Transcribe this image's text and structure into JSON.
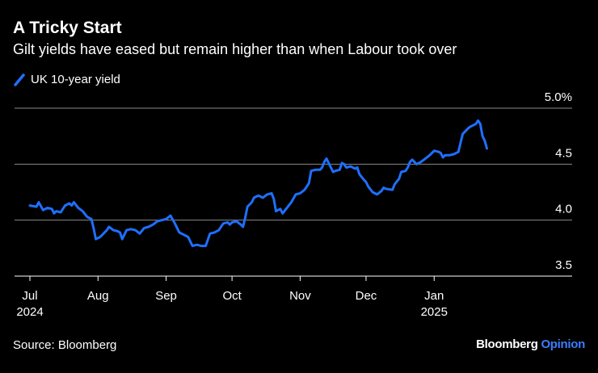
{
  "header": {
    "title": "A Tricky Start",
    "subtitle": "Gilt yields have eased but remain higher than when Labour took over"
  },
  "footer": {
    "source": "Source: Bloomberg",
    "brand": "Bloomberg",
    "brand_suffix": "Opinion"
  },
  "colors": {
    "line": "#1f6fff",
    "grid": "#8a8a8a",
    "background": "#000000",
    "text": "#ffffff"
  },
  "chart_data": {
    "type": "line",
    "title": "A Tricky Start",
    "subtitle": "Gilt yields have eased but remain higher than when Labour took over",
    "xlabel": "",
    "ylabel": "",
    "ylim": [
      3.5,
      5.0
    ],
    "xlim": [
      0,
      224
    ],
    "yticks": [
      {
        "value": 5.0,
        "label": "5.0%"
      },
      {
        "value": 4.5,
        "label": "4.5"
      },
      {
        "value": 4.0,
        "label": "4.0"
      },
      {
        "value": 3.5,
        "label": "3.5"
      }
    ],
    "xticks": [
      {
        "x": 0,
        "label": "Jul",
        "sublabel": "2024"
      },
      {
        "x": 31,
        "label": "Aug",
        "sublabel": ""
      },
      {
        "x": 62,
        "label": "Sep",
        "sublabel": ""
      },
      {
        "x": 92,
        "label": "Oct",
        "sublabel": ""
      },
      {
        "x": 123,
        "label": "Nov",
        "sublabel": ""
      },
      {
        "x": 153,
        "label": "Dec",
        "sublabel": ""
      },
      {
        "x": 184,
        "label": "Jan",
        "sublabel": "2025"
      }
    ],
    "legend": [
      "UK 10-year yield"
    ],
    "grid": true,
    "series": [
      {
        "name": "UK 10-year yield",
        "points": [
          [
            0,
            4.13
          ],
          [
            3,
            4.12
          ],
          [
            4,
            4.16
          ],
          [
            6,
            4.09
          ],
          [
            8,
            4.11
          ],
          [
            10,
            4.1
          ],
          [
            11,
            4.06
          ],
          [
            12,
            4.08
          ],
          [
            14,
            4.07
          ],
          [
            16,
            4.13
          ],
          [
            18,
            4.15
          ],
          [
            19,
            4.13
          ],
          [
            20,
            4.16
          ],
          [
            22,
            4.11
          ],
          [
            24,
            4.08
          ],
          [
            26,
            4.03
          ],
          [
            28,
            4.01
          ],
          [
            29,
            3.93
          ],
          [
            30,
            3.83
          ],
          [
            32,
            3.85
          ],
          [
            35,
            3.91
          ],
          [
            36,
            3.94
          ],
          [
            38,
            3.91
          ],
          [
            40,
            3.9
          ],
          [
            41,
            3.89
          ],
          [
            42,
            3.83
          ],
          [
            44,
            3.91
          ],
          [
            46,
            3.92
          ],
          [
            48,
            3.91
          ],
          [
            50,
            3.88
          ],
          [
            52,
            3.93
          ],
          [
            54,
            3.94
          ],
          [
            56,
            3.96
          ],
          [
            58,
            3.99
          ],
          [
            60,
            4.0
          ],
          [
            62,
            4.01
          ],
          [
            64,
            4.04
          ],
          [
            66,
            3.97
          ],
          [
            68,
            3.89
          ],
          [
            70,
            3.87
          ],
          [
            72,
            3.85
          ],
          [
            74,
            3.77
          ],
          [
            76,
            3.78
          ],
          [
            78,
            3.77
          ],
          [
            80,
            3.77
          ],
          [
            82,
            3.88
          ],
          [
            84,
            3.89
          ],
          [
            86,
            3.91
          ],
          [
            88,
            3.97
          ],
          [
            90,
            3.98
          ],
          [
            91,
            3.96
          ],
          [
            92,
            3.98
          ],
          [
            94,
            3.99
          ],
          [
            96,
            3.96
          ],
          [
            97,
            3.94
          ],
          [
            98,
            4.02
          ],
          [
            99,
            4.12
          ],
          [
            101,
            4.16
          ],
          [
            102,
            4.2
          ],
          [
            104,
            4.22
          ],
          [
            106,
            4.2
          ],
          [
            108,
            4.23
          ],
          [
            110,
            4.24
          ],
          [
            111,
            4.19
          ],
          [
            112,
            4.08
          ],
          [
            114,
            4.1
          ],
          [
            115,
            4.06
          ],
          [
            117,
            4.11
          ],
          [
            119,
            4.16
          ],
          [
            121,
            4.23
          ],
          [
            123,
            4.24
          ],
          [
            125,
            4.27
          ],
          [
            127,
            4.33
          ],
          [
            128,
            4.44
          ],
          [
            130,
            4.45
          ],
          [
            132,
            4.45
          ],
          [
            133,
            4.47
          ],
          [
            134,
            4.52
          ],
          [
            135,
            4.55
          ],
          [
            136,
            4.51
          ],
          [
            138,
            4.43
          ],
          [
            139,
            4.44
          ],
          [
            141,
            4.45
          ],
          [
            142,
            4.51
          ],
          [
            143,
            4.5
          ],
          [
            144,
            4.47
          ],
          [
            146,
            4.48
          ],
          [
            148,
            4.46
          ],
          [
            149,
            4.47
          ],
          [
            150,
            4.41
          ],
          [
            152,
            4.36
          ],
          [
            153,
            4.34
          ],
          [
            154,
            4.3
          ],
          [
            156,
            4.25
          ],
          [
            158,
            4.23
          ],
          [
            160,
            4.26
          ],
          [
            161,
            4.29
          ],
          [
            162,
            4.28
          ],
          [
            165,
            4.27
          ],
          [
            166,
            4.32
          ],
          [
            168,
            4.37
          ],
          [
            169,
            4.43
          ],
          [
            171,
            4.44
          ],
          [
            172,
            4.47
          ],
          [
            173,
            4.52
          ],
          [
            174,
            4.54
          ],
          [
            176,
            4.5
          ],
          [
            178,
            4.52
          ],
          [
            180,
            4.55
          ],
          [
            182,
            4.58
          ],
          [
            184,
            4.62
          ],
          [
            186,
            4.61
          ],
          [
            187,
            4.6
          ],
          [
            188,
            4.56
          ],
          [
            189,
            4.58
          ],
          [
            191,
            4.58
          ],
          [
            193,
            4.59
          ],
          [
            195,
            4.61
          ],
          [
            196,
            4.69
          ],
          [
            197,
            4.77
          ],
          [
            199,
            4.81
          ],
          [
            200,
            4.83
          ],
          [
            202,
            4.85
          ],
          [
            203,
            4.86
          ],
          [
            204,
            4.89
          ],
          [
            205,
            4.86
          ],
          [
            206,
            4.75
          ],
          [
            207,
            4.71
          ],
          [
            208,
            4.64
          ]
        ]
      }
    ]
  }
}
